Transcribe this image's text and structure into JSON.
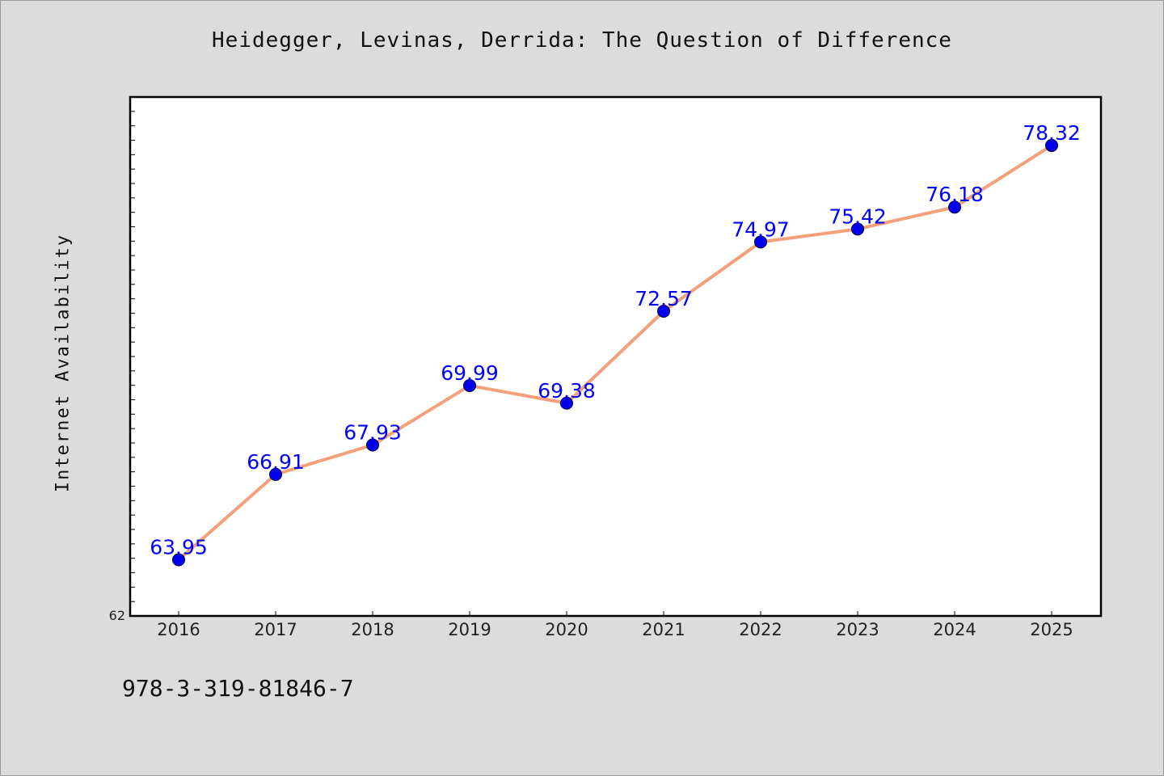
{
  "chart_data": {
    "type": "line",
    "title": "Heidegger, Levinas, Derrida: The Question of Difference",
    "xlabel": "",
    "ylabel": "Internet Availability",
    "x": [
      "2016",
      "2017",
      "2018",
      "2019",
      "2020",
      "2021",
      "2022",
      "2023",
      "2024",
      "2025"
    ],
    "series": [
      {
        "values": [
          63.95,
          66.91,
          67.93,
          69.99,
          69.38,
          72.57,
          74.97,
          75.42,
          76.18,
          78.32
        ],
        "line_color": "#f4a07a",
        "marker_color": "#0000ee",
        "label_color": "#0000ff"
      }
    ],
    "ylim": [
      62,
      80
    ],
    "y_tick_labels": [
      "62"
    ],
    "data_labels": true,
    "grid": false,
    "legend": "none"
  },
  "footer": {
    "isbn": "978-3-319-81846-7"
  }
}
